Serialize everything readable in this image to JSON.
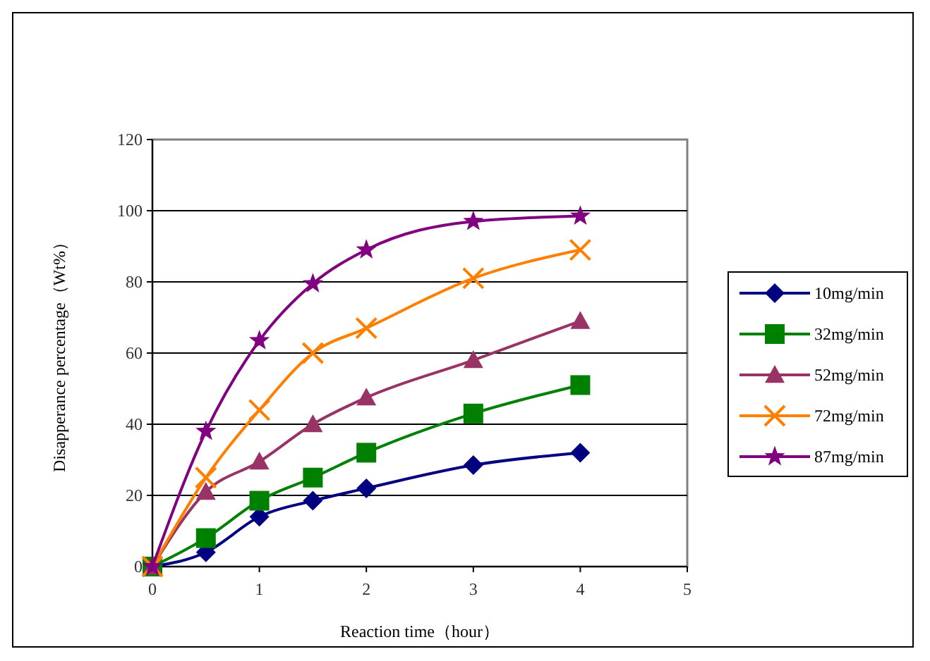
{
  "chart_data": {
    "type": "line",
    "xlabel": "Reaction time（hour）",
    "ylabel": "Disapperance percentage（Wt%）",
    "x": [
      0,
      0.5,
      1,
      1.5,
      2,
      3,
      4
    ],
    "series": [
      {
        "name": "10mg/min",
        "color": "#000080",
        "marker": "diamond",
        "values": [
          0,
          4,
          14,
          18.5,
          22,
          28.5,
          32
        ]
      },
      {
        "name": "32mg/min",
        "color": "#008000",
        "marker": "square",
        "values": [
          0,
          8,
          18.5,
          25,
          32,
          43,
          51
        ]
      },
      {
        "name": "52mg/min",
        "color": "#993366",
        "marker": "triangle",
        "values": [
          0,
          21,
          29.5,
          40,
          47.5,
          58,
          69
        ]
      },
      {
        "name": "72mg/min",
        "color": "#ff7f00",
        "marker": "cross",
        "values": [
          0,
          25,
          44,
          60,
          67,
          81,
          89
        ]
      },
      {
        "name": "87mg/min",
        "color": "#800080",
        "marker": "star",
        "values": [
          0,
          38,
          63.5,
          79.5,
          89,
          97,
          98.5
        ]
      }
    ],
    "xlim": [
      0,
      5
    ],
    "xticks": [
      0,
      1,
      2,
      3,
      4,
      5
    ],
    "ylim": [
      0,
      120
    ],
    "yticks": [
      0,
      20,
      40,
      60,
      80,
      100,
      120
    ],
    "grid": "y",
    "legend": "right"
  }
}
